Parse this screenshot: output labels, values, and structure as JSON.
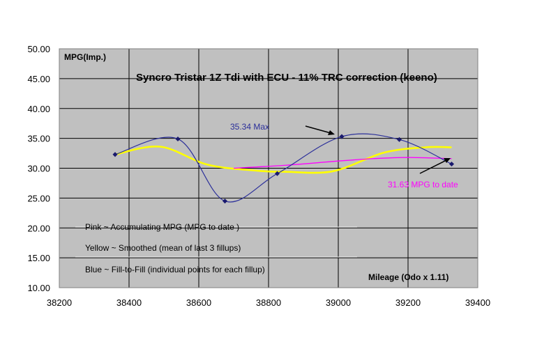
{
  "chart_data": {
    "type": "line",
    "title": "Syncro Tristar 1Z Tdi with ECU - 11% TRC correction (keeno)",
    "ylabel": "MPG(Imp.)",
    "xlabel": "Mileage (Odo x 1.11)",
    "xlim": [
      38200,
      39400
    ],
    "ylim": [
      10,
      50
    ],
    "x_ticks": [
      "38200",
      "38400",
      "38600",
      "38800",
      "39000",
      "39200",
      "39400"
    ],
    "y_ticks": [
      "10.00",
      "15.00",
      "20.00",
      "25.00",
      "30.00",
      "35.00",
      "40.00",
      "45.00",
      "50.00"
    ],
    "grid": true,
    "background_color": "#c0c0c0",
    "series": [
      {
        "color": "#2b2f9a",
        "markers": true,
        "smooth": true,
        "x": [
          38360,
          38540,
          38675,
          38825,
          39010,
          39175,
          39325
        ],
        "y": [
          32.3,
          34.9,
          24.5,
          29.1,
          35.3,
          34.8,
          30.7
        ]
      },
      {
        "color": "#ffff00",
        "markers": false,
        "smooth": true,
        "x": [
          38360,
          38490,
          38625,
          38765,
          38850,
          38985,
          39130,
          39250,
          39325
        ],
        "y": [
          32.3,
          33.6,
          30.6,
          29.6,
          29.4,
          29.5,
          32.6,
          33.5,
          33.5
        ]
      },
      {
        "color": "#ff00ff",
        "markers": false,
        "smooth": true,
        "x": [
          38700,
          38850,
          39000,
          39100,
          39200,
          39325
        ],
        "y": [
          30.0,
          30.5,
          31.2,
          31.6,
          31.8,
          31.6
        ]
      }
    ],
    "annotations": [
      {
        "text": "35.34 Max",
        "color": "#2b2f9a"
      },
      {
        "text": "31.63 MPG  to date",
        "color": "#ff00ff"
      }
    ],
    "notes": [
      "Pink ~    Accumulating MPG (MPG to date )",
      "Yellow ~ Smoothed (mean of last 3 fillups)",
      "Blue ~    Fill-to-Fill  (individual points for each fillup)"
    ]
  }
}
